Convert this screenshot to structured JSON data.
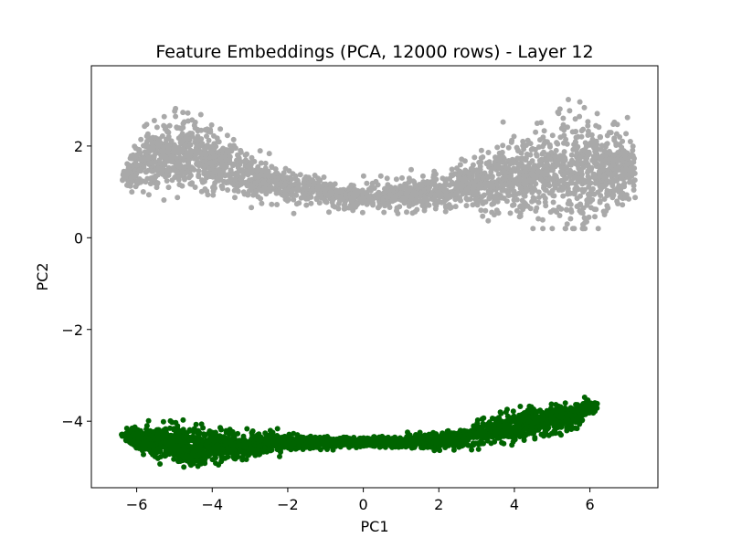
{
  "chart_data": {
    "type": "scatter",
    "title": "Feature Embeddings (PCA, 12000 rows) - Layer 12",
    "xlabel": "PC1",
    "ylabel": "PC2",
    "xlim": [
      -7.2,
      7.8
    ],
    "ylim": [
      -5.45,
      3.75
    ],
    "xticks": [
      -6,
      -4,
      -2,
      0,
      2,
      4,
      6
    ],
    "yticks": [
      -4,
      -2,
      0,
      2
    ],
    "xtick_labels": [
      "−6",
      "−4",
      "−2",
      "0",
      "2",
      "4",
      "6"
    ],
    "ytick_labels": [
      "−4",
      "−2",
      "0",
      "2"
    ],
    "grid": false,
    "legend": "none",
    "series": [
      {
        "color": "#a9a9a9",
        "n_points": 6000,
        "x_range": [
          -6.4,
          7.2
        ],
        "y_range": [
          0.2,
          3.45
        ],
        "centerline": [
          [
            -6.4,
            1.3
          ],
          [
            -5.6,
            1.75
          ],
          [
            -4.6,
            1.8
          ],
          [
            -3.6,
            1.5
          ],
          [
            -2.5,
            1.25
          ],
          [
            -1.5,
            1.05
          ],
          [
            -0.5,
            0.9
          ],
          [
            0.5,
            0.9
          ],
          [
            1.5,
            0.95
          ],
          [
            2.5,
            1.1
          ],
          [
            3.5,
            1.2
          ],
          [
            4.5,
            1.35
          ],
          [
            5.5,
            1.5
          ],
          [
            6.2,
            1.55
          ],
          [
            7.0,
            1.5
          ]
        ],
        "halfwidth": [
          [
            -6.4,
            0.15
          ],
          [
            -5.6,
            0.75
          ],
          [
            -4.6,
            0.85
          ],
          [
            -3.6,
            0.6
          ],
          [
            -2.5,
            0.45
          ],
          [
            -1.5,
            0.35
          ],
          [
            -0.5,
            0.3
          ],
          [
            0.5,
            0.3
          ],
          [
            1.5,
            0.35
          ],
          [
            2.5,
            0.5
          ],
          [
            3.5,
            0.7
          ],
          [
            4.5,
            0.95
          ],
          [
            5.5,
            1.15
          ],
          [
            6.2,
            1.15
          ],
          [
            7.0,
            0.75
          ]
        ]
      },
      {
        "color": "#006400",
        "n_points": 6000,
        "x_range": [
          -6.4,
          6.2
        ],
        "y_range": [
          -5.0,
          -3.3
        ],
        "centerline": [
          [
            -6.4,
            -4.3
          ],
          [
            -5.5,
            -4.45
          ],
          [
            -4.5,
            -4.55
          ],
          [
            -3.5,
            -4.55
          ],
          [
            -2.5,
            -4.5
          ],
          [
            -1.5,
            -4.45
          ],
          [
            -0.5,
            -4.45
          ],
          [
            0.5,
            -4.45
          ],
          [
            1.5,
            -4.45
          ],
          [
            2.5,
            -4.4
          ],
          [
            3.5,
            -4.2
          ],
          [
            4.5,
            -4.05
          ],
          [
            5.5,
            -3.9
          ],
          [
            6.2,
            -3.65
          ]
        ],
        "halfwidth": [
          [
            -6.4,
            0.05
          ],
          [
            -5.5,
            0.4
          ],
          [
            -4.5,
            0.45
          ],
          [
            -3.5,
            0.3
          ],
          [
            -2.5,
            0.2
          ],
          [
            -1.5,
            0.15
          ],
          [
            -0.5,
            0.12
          ],
          [
            0.5,
            0.12
          ],
          [
            1.5,
            0.15
          ],
          [
            2.5,
            0.2
          ],
          [
            3.5,
            0.3
          ],
          [
            4.5,
            0.35
          ],
          [
            5.5,
            0.3
          ],
          [
            6.2,
            0.1
          ]
        ]
      }
    ]
  }
}
